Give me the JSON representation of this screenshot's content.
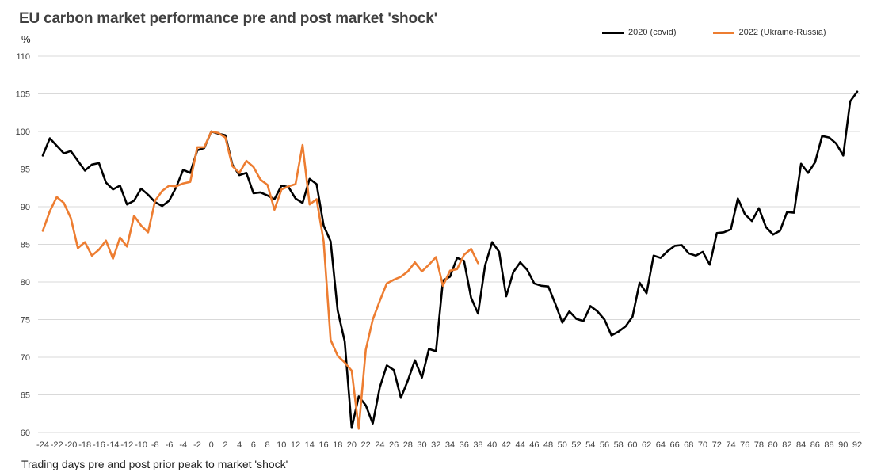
{
  "chart_data": {
    "type": "line",
    "title": "EU carbon market performance pre and post market 'shock'",
    "ylabel": "%",
    "xlabel": "Trading days pre and post prior peak to market 'shock'",
    "ylim": [
      60,
      110
    ],
    "yticks": [
      60,
      65,
      70,
      75,
      80,
      85,
      90,
      95,
      100,
      105,
      110
    ],
    "xlim": [
      -24,
      92
    ],
    "xticks": [
      -24,
      -22,
      -20,
      -18,
      -16,
      -14,
      -12,
      -10,
      -8,
      -6,
      -4,
      -2,
      0,
      2,
      4,
      6,
      8,
      10,
      12,
      14,
      16,
      18,
      20,
      22,
      24,
      26,
      28,
      30,
      32,
      34,
      36,
      38,
      40,
      42,
      44,
      46,
      48,
      50,
      52,
      54,
      56,
      58,
      60,
      62,
      64,
      66,
      68,
      70,
      72,
      74,
      76,
      78,
      80,
      82,
      84,
      86,
      88,
      90,
      92
    ],
    "grid": "horizontal",
    "legend_position": "top-right",
    "series": [
      {
        "name": "2020 (covid)",
        "color": "#000000",
        "x_start": -24,
        "values": [
          96.8,
          99.1,
          98.1,
          97.1,
          97.4,
          96.1,
          94.8,
          95.6,
          95.8,
          93.2,
          92.3,
          92.8,
          90.3,
          90.8,
          92.4,
          91.6,
          90.6,
          90.1,
          90.8,
          92.6,
          94.9,
          94.5,
          97.5,
          97.8,
          100.0,
          99.7,
          99.5,
          95.6,
          94.2,
          94.5,
          91.8,
          91.9,
          91.5,
          91.0,
          92.8,
          92.6,
          91.1,
          90.5,
          93.7,
          93.0,
          87.5,
          85.4,
          76.2,
          72.1,
          60.6,
          64.8,
          63.6,
          61.2,
          66.0,
          68.9,
          68.3,
          64.6,
          66.9,
          69.6,
          67.3,
          71.1,
          70.8,
          80.2,
          80.7,
          83.2,
          82.8,
          77.9,
          75.8,
          82.2,
          85.3,
          84.0,
          78.1,
          81.3,
          82.6,
          81.6,
          79.8,
          79.5,
          79.4,
          77.1,
          74.6,
          76.1,
          75.1,
          74.8,
          76.8,
          76.1,
          75.0,
          72.9,
          73.4,
          74.1,
          75.4,
          79.9,
          78.5,
          83.5,
          83.2,
          84.1,
          84.8,
          84.9,
          83.8,
          83.5,
          84.0,
          82.3,
          86.5,
          86.6,
          87.0,
          91.1,
          89.0,
          88.1,
          89.8,
          87.3,
          86.3,
          86.8,
          89.3,
          89.2,
          95.7,
          94.5,
          95.9,
          99.4,
          99.2,
          98.4,
          96.8,
          104.0,
          105.3
        ]
      },
      {
        "name": "2022 (Ukraine-Russia)",
        "color": "#ED7D31",
        "x_start": -24,
        "values": [
          86.8,
          89.4,
          91.3,
          90.5,
          88.5,
          84.5,
          85.3,
          83.5,
          84.3,
          85.5,
          83.1,
          85.9,
          84.7,
          88.8,
          87.5,
          86.6,
          90.8,
          92.1,
          92.8,
          92.7,
          93.1,
          93.3,
          97.9,
          97.9,
          100.0,
          99.8,
          99.2,
          95.4,
          94.5,
          96.1,
          95.3,
          93.6,
          92.9,
          89.6,
          92.3,
          92.7,
          93.0,
          98.2,
          90.3,
          91.0,
          85.4,
          72.3,
          70.2,
          69.3,
          68.2,
          60.5,
          71.0,
          75.0,
          77.5,
          79.8,
          80.3,
          80.7,
          81.4,
          82.6,
          81.4,
          82.3,
          83.3,
          79.5,
          81.5,
          81.7,
          83.6,
          84.4,
          82.5
        ]
      }
    ]
  }
}
